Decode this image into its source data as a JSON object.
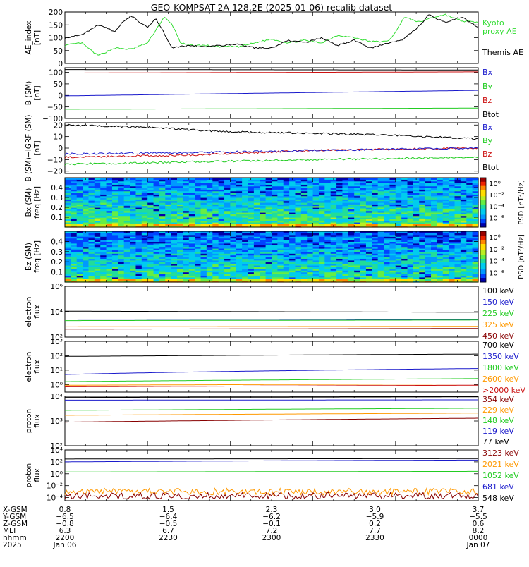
{
  "title": "GEO-KOMPSAT-2A 128.2E (2025-01-06) recalib dataset",
  "colors": {
    "black": "#000000",
    "blue": "#1a1acc",
    "green": "#22cc22",
    "red": "#cc1111",
    "orange": "#ff9900",
    "maroon": "#880000",
    "kyoto": "#33dd33"
  },
  "chart_data": [
    {
      "type": "line",
      "panel": "ae",
      "ylabel": [
        "AE_index",
        "[nT]"
      ],
      "ylim": [
        0,
        200
      ],
      "yticks": [
        {
          "v": 0,
          "label": "0"
        },
        {
          "v": 50,
          "label": "50"
        },
        {
          "v": 100,
          "label": "100"
        },
        {
          "v": 150,
          "label": "150"
        },
        {
          "v": 200,
          "label": "200"
        }
      ],
      "legend": [
        {
          "label": "Kyoto",
          "color": "#33dd33"
        },
        {
          "label": "proxy AE",
          "color": "#33dd33"
        },
        {
          "label": "Themis AE",
          "color": "#000000"
        }
      ],
      "series": [
        {
          "name": "Kyoto proxy AE",
          "color": "#33dd33",
          "x": [
            0,
            0.04,
            0.06,
            0.08,
            0.12,
            0.16,
            0.2,
            0.24,
            0.26,
            0.28,
            0.3,
            0.34,
            0.38,
            0.42,
            0.46,
            0.5,
            0.54,
            0.58,
            0.62,
            0.66,
            0.7,
            0.74,
            0.78,
            0.8,
            0.82,
            0.86,
            0.88,
            0.92,
            0.96,
            1.0
          ],
          "values": [
            70,
            80,
            55,
            30,
            60,
            55,
            80,
            180,
            150,
            80,
            70,
            70,
            65,
            65,
            80,
            95,
            80,
            90,
            80,
            110,
            100,
            85,
            85,
            120,
            180,
            160,
            175,
            190,
            165,
            160
          ]
        },
        {
          "name": "Themis AE",
          "color": "#000000",
          "x": [
            0,
            0.04,
            0.08,
            0.12,
            0.14,
            0.16,
            0.2,
            0.22,
            0.26,
            0.3,
            0.34,
            0.38,
            0.42,
            0.46,
            0.5,
            0.54,
            0.58,
            0.62,
            0.66,
            0.7,
            0.74,
            0.78,
            0.82,
            0.86,
            0.88,
            0.92,
            0.96,
            1.0
          ],
          "values": [
            100,
            110,
            150,
            125,
            160,
            185,
            140,
            175,
            60,
            70,
            65,
            70,
            75,
            60,
            60,
            90,
            80,
            100,
            70,
            90,
            60,
            80,
            95,
            150,
            190,
            160,
            180,
            140
          ]
        }
      ]
    },
    {
      "type": "line",
      "panel": "b_sm",
      "ylabel": [
        "B (SM)",
        "[nT]"
      ],
      "ylim": [
        -100,
        120
      ],
      "yticks": [
        {
          "v": -100,
          "label": "−100"
        },
        {
          "v": -50,
          "label": "−50"
        },
        {
          "v": 0,
          "label": "0"
        },
        {
          "v": 50,
          "label": "50"
        },
        {
          "v": 100,
          "label": "100"
        }
      ],
      "legend": [
        {
          "label": "Bx",
          "color": "#1a1acc"
        },
        {
          "label": "By",
          "color": "#22cc22"
        },
        {
          "label": "Bz",
          "color": "#cc1111"
        },
        {
          "label": "Btot",
          "color": "#000000"
        }
      ],
      "series": [
        {
          "name": "Btot",
          "color": "#000000",
          "x": [
            0,
            1
          ],
          "values": [
            112,
            110
          ]
        },
        {
          "name": "Bz",
          "color": "#cc1111",
          "x": [
            0,
            1
          ],
          "values": [
            97,
            102
          ]
        },
        {
          "name": "Bx",
          "color": "#1a1acc",
          "x": [
            0,
            0.5,
            1
          ],
          "values": [
            -2,
            10,
            22
          ]
        },
        {
          "name": "By",
          "color": "#22cc22",
          "x": [
            0,
            1
          ],
          "values": [
            -60,
            -55
          ]
        }
      ]
    },
    {
      "type": "line",
      "panel": "b_igrf",
      "ylabel": [
        "B (SM)−IGRF (SM)",
        "[nT]"
      ],
      "ylim": [
        -22,
        22
      ],
      "yticks": [
        {
          "v": -20,
          "label": "−20"
        },
        {
          "v": -10,
          "label": "−10"
        },
        {
          "v": 0,
          "label": "0"
        },
        {
          "v": 10,
          "label": "10"
        },
        {
          "v": 20,
          "label": "20"
        }
      ],
      "legend": [
        {
          "label": "Bx",
          "color": "#1a1acc"
        },
        {
          "label": "By",
          "color": "#22cc22"
        },
        {
          "label": "Bz",
          "color": "#cc1111"
        },
        {
          "label": "Btot",
          "color": "#000000"
        }
      ],
      "series": [
        {
          "name": "Btot",
          "color": "#000000",
          "x": [
            0,
            0.2,
            0.4,
            0.6,
            0.8,
            1
          ],
          "values": [
            20,
            18,
            14,
            13,
            11,
            8
          ]
        },
        {
          "name": "Bz",
          "color": "#cc1111",
          "x": [
            0,
            0.3,
            0.6,
            1
          ],
          "values": [
            -8,
            -6,
            -2,
            0
          ]
        },
        {
          "name": "Bx",
          "color": "#1a1acc",
          "x": [
            0,
            0.3,
            0.6,
            1
          ],
          "values": [
            -5,
            -4,
            -2,
            0
          ]
        },
        {
          "name": "By",
          "color": "#22cc22",
          "x": [
            0,
            0.3,
            0.6,
            1
          ],
          "values": [
            -14,
            -12,
            -10,
            -8
          ]
        }
      ]
    },
    {
      "type": "heatmap",
      "panel": "bx_spec",
      "ylabel": [
        "Bx (SM)",
        "freq [Hz]"
      ],
      "ylim": [
        0,
        0.5
      ],
      "yticks": [
        {
          "v": 0.1,
          "label": "0.1"
        },
        {
          "v": 0.2,
          "label": "0.2"
        },
        {
          "v": 0.3,
          "label": "0.3"
        },
        {
          "v": 0.4,
          "label": "0.4"
        }
      ],
      "colorbar": {
        "label": "PSD [nT²/Hz]",
        "ticks": [
          "10⁰",
          "10⁻²",
          "10⁻⁴",
          "10⁻⁶"
        ]
      }
    },
    {
      "type": "heatmap",
      "panel": "bz_spec",
      "ylabel": [
        "Bz (SM)",
        "freq [Hz]"
      ],
      "ylim": [
        0,
        0.5
      ],
      "yticks": [
        {
          "v": 0.1,
          "label": "0.1"
        },
        {
          "v": 0.2,
          "label": "0.2"
        },
        {
          "v": 0.3,
          "label": "0.3"
        },
        {
          "v": 0.4,
          "label": "0.4"
        }
      ],
      "colorbar": {
        "label": "PSD [nT²/Hz]",
        "ticks": [
          "10⁰",
          "10⁻²",
          "10⁻⁴",
          "10⁻⁶"
        ]
      }
    },
    {
      "type": "line",
      "panel": "electron_low",
      "ylabel": [
        "electron",
        "flux"
      ],
      "scale": "log",
      "ylim": [
        100,
        1000000
      ],
      "yticks": [
        {
          "v": 100,
          "label": "10²"
        },
        {
          "v": 10000,
          "label": "10⁴"
        },
        {
          "v": 1000000,
          "label": "10⁶"
        }
      ],
      "legend": [
        {
          "label": "100 keV",
          "color": "#000000"
        },
        {
          "label": "150 keV",
          "color": "#1a1acc"
        },
        {
          "label": "225 keV",
          "color": "#22cc22"
        },
        {
          "label": "325 keV",
          "color": "#ff9900"
        },
        {
          "label": "450 keV",
          "color": "#880000"
        }
      ],
      "series": [
        {
          "name": "100 keV",
          "color": "#000000",
          "x": [
            0,
            1
          ],
          "values": [
            11000,
            9000
          ]
        },
        {
          "name": "150 keV",
          "color": "#1a1acc",
          "x": [
            0,
            1
          ],
          "values": [
            2600,
            2400
          ]
        },
        {
          "name": "225 keV",
          "color": "#22cc22",
          "x": [
            0,
            1
          ],
          "values": [
            2000,
            2200
          ]
        },
        {
          "name": "325 keV",
          "color": "#ff9900",
          "x": [
            0,
            1
          ],
          "values": [
            650,
            700
          ]
        },
        {
          "name": "450 keV",
          "color": "#880000",
          "x": [
            0,
            1
          ],
          "values": [
            420,
            480
          ]
        }
      ]
    },
    {
      "type": "line",
      "panel": "electron_high",
      "ylabel": [
        "electron",
        "flux"
      ],
      "scale": "log",
      "ylim": [
        0.3,
        1000
      ],
      "yticks": [
        {
          "v": 1,
          "label": "10⁰"
        },
        {
          "v": 10,
          "label": "10¹"
        },
        {
          "v": 100,
          "label": "10²"
        },
        {
          "v": 1000,
          "label": "10³"
        }
      ],
      "legend": [
        {
          "label": "700 keV",
          "color": "#000000"
        },
        {
          "label": "1350 keV",
          "color": "#1a1acc"
        },
        {
          "label": "1800 keV",
          "color": "#22cc22"
        },
        {
          "label": "2600 keV",
          "color": "#ff9900"
        },
        {
          "label": ">2000 keV",
          "color": "#cc1111"
        }
      ],
      "series": [
        {
          "name": "700 keV",
          "color": "#000000",
          "x": [
            0,
            0.5,
            1
          ],
          "values": [
            90,
            110,
            130
          ]
        },
        {
          "name": "1350 keV",
          "color": "#1a1acc",
          "x": [
            0,
            0.5,
            1
          ],
          "values": [
            5,
            9,
            13
          ]
        },
        {
          "name": "1800 keV",
          "color": "#22cc22",
          "x": [
            0,
            0.5,
            1
          ],
          "values": [
            1.6,
            2.1,
            2.6
          ]
        },
        {
          "name": "2600 keV",
          "color": "#ff9900",
          "x": [
            0,
            0.5,
            1
          ],
          "values": [
            0.9,
            1.0,
            1.1
          ]
        },
        {
          "name": ">2000 keV",
          "color": "#cc1111",
          "x": [
            0,
            0.5,
            1
          ],
          "values": [
            0.7,
            0.8,
            0.9
          ]
        }
      ]
    },
    {
      "type": "line",
      "panel": "proton_low",
      "ylabel": [
        "proton",
        "flux"
      ],
      "scale": "log",
      "ylim": [
        100,
        10000
      ],
      "yticks": [
        {
          "v": 100,
          "label": "10²"
        },
        {
          "v": 1000,
          "label": "10³"
        },
        {
          "v": 10000,
          "label": "10⁴"
        }
      ],
      "legend": [
        {
          "label": "354 keV",
          "color": "#880000"
        },
        {
          "label": "229 keV",
          "color": "#ff9900"
        },
        {
          "label": "148 keV",
          "color": "#22cc22"
        },
        {
          "label": "119 keV",
          "color": "#1a1acc"
        },
        {
          "label": "77 keV",
          "color": "#000000"
        }
      ],
      "series": [
        {
          "name": "77 keV",
          "color": "#000000",
          "x": [
            0,
            1
          ],
          "values": [
            9000,
            9500
          ]
        },
        {
          "name": "119 keV",
          "color": "#1a1acc",
          "x": [
            0,
            1
          ],
          "values": [
            7000,
            7200
          ]
        },
        {
          "name": "148 keV",
          "color": "#22cc22",
          "x": [
            0,
            1
          ],
          "values": [
            2700,
            3300
          ]
        },
        {
          "name": "229 keV",
          "color": "#ff9900",
          "x": [
            0,
            1
          ],
          "values": [
            1700,
            2100
          ]
        },
        {
          "name": "354 keV",
          "color": "#880000",
          "x": [
            0,
            1
          ],
          "values": [
            900,
            1300
          ]
        }
      ]
    },
    {
      "type": "line",
      "panel": "proton_high",
      "ylabel": [
        "proton",
        "flux"
      ],
      "scale": "log",
      "ylim": [
        3e-05,
        10000
      ],
      "yticks": [
        {
          "v": 0.0001,
          "label": "10⁻⁴"
        },
        {
          "v": 0.01,
          "label": "10⁻²"
        },
        {
          "v": 1,
          "label": "10⁰"
        },
        {
          "v": 100,
          "label": "10²"
        },
        {
          "v": 10000,
          "label": "10⁴"
        }
      ],
      "legend": [
        {
          "label": "3123 keV",
          "color": "#880000"
        },
        {
          "label": "2021 keV",
          "color": "#ff9900"
        },
        {
          "label": "1052 keV",
          "color": "#22cc22"
        },
        {
          "label": "681 keV",
          "color": "#1a1acc"
        },
        {
          "label": "548 keV",
          "color": "#000000"
        }
      ],
      "series": [
        {
          "name": "548 keV",
          "color": "#000000",
          "x": [
            0,
            1
          ],
          "values": [
            300,
            350
          ]
        },
        {
          "name": "681 keV",
          "color": "#1a1acc",
          "x": [
            0,
            0.5,
            1
          ],
          "values": [
            100,
            150,
            200
          ]
        },
        {
          "name": "1052 keV",
          "color": "#22cc22",
          "x": [
            0,
            1
          ],
          "values": [
            2,
            2.5
          ]
        },
        {
          "name": "2021 keV",
          "color": "#ff9900",
          "x": [
            0,
            1
          ],
          "values": [
            0.001,
            0.001
          ],
          "noisy": true
        },
        {
          "name": "3123 keV",
          "color": "#880000",
          "x": [
            0,
            1
          ],
          "values": [
            0.0002,
            0.0002
          ],
          "noisy": true
        }
      ]
    }
  ],
  "ephemeris": {
    "row_labels": [
      "X-GSM",
      "Y-GSM",
      "Z-GSM",
      "MLT",
      "hhmm",
      "2025"
    ],
    "columns": [
      [
        "0.8",
        "−6.5",
        "−0.8",
        "6.3",
        "2200",
        "Jan 06"
      ],
      [
        "1.5",
        "−6.4",
        "−0.5",
        "6.7",
        "2230",
        ""
      ],
      [
        "2.3",
        "−6.2",
        "−0.1",
        "7.2",
        "2300",
        ""
      ],
      [
        "3.0",
        "−5.9",
        "0.2",
        "7.7",
        "2330",
        ""
      ],
      [
        "3.7",
        "−5.5",
        "0.6",
        "8.2",
        "0000",
        "Jan 07"
      ]
    ]
  }
}
